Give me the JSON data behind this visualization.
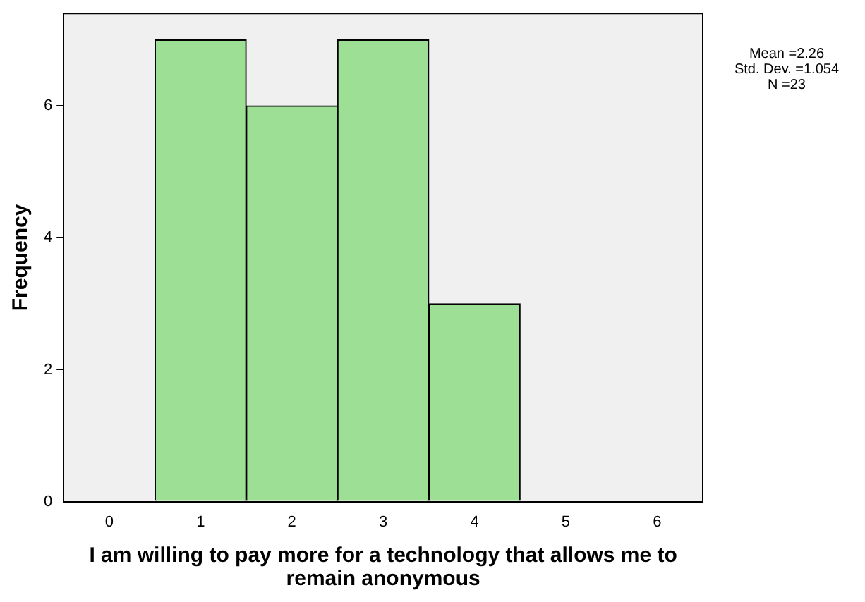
{
  "chart_data": {
    "type": "histogram",
    "xlabel": "I am willing to pay more for a technology that allows me to remain anonymous",
    "ylabel": "Frequency",
    "bins": [
      0.5,
      1.5,
      2.5,
      3.5,
      4.5
    ],
    "values": [
      7,
      6,
      7,
      3
    ],
    "color": "#9ddf95",
    "xlim": [
      -0.5,
      6.5
    ],
    "xticks": [
      0,
      1,
      2,
      3,
      4,
      5,
      6
    ],
    "ylim": [
      0,
      7.4
    ],
    "yticks": [
      0,
      2,
      4,
      6
    ],
    "grid": false,
    "legend": false,
    "annotations": [
      "Mean =2.26",
      "Std. Dev. =1.054",
      "N =23"
    ]
  }
}
